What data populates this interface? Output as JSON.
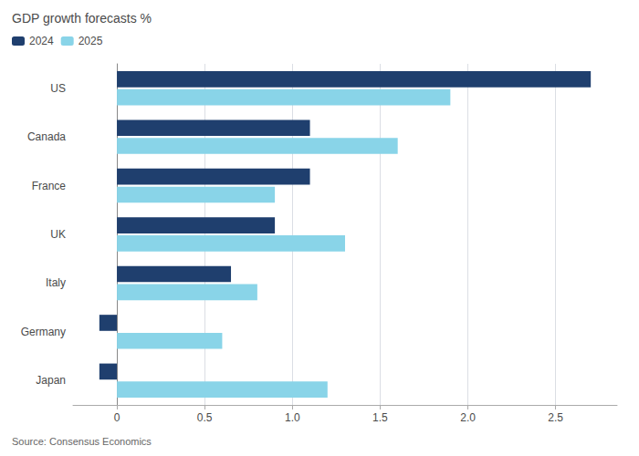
{
  "chart_data": {
    "type": "bar",
    "orientation": "horizontal",
    "title": "GDP growth forecasts %",
    "source": "Source: Consensus Economics",
    "categories": [
      "US",
      "Canada",
      "France",
      "UK",
      "Italy",
      "Germany",
      "Japan"
    ],
    "series": [
      {
        "name": "2024",
        "color": "#1f3f6e",
        "values": [
          2.7,
          1.1,
          1.1,
          0.9,
          0.65,
          -0.1,
          -0.1
        ]
      },
      {
        "name": "2025",
        "color": "#89d4e8",
        "values": [
          1.9,
          1.6,
          0.9,
          1.3,
          0.8,
          0.6,
          1.2
        ]
      }
    ],
    "xlim": [
      -0.25,
      2.85
    ],
    "xticks": [
      0,
      0.5,
      {
        "value": 1,
        "label": "1.0"
      },
      1.5,
      {
        "value": 2,
        "label": "2.0"
      },
      2.5
    ],
    "grid": true,
    "legend": "upper left"
  }
}
